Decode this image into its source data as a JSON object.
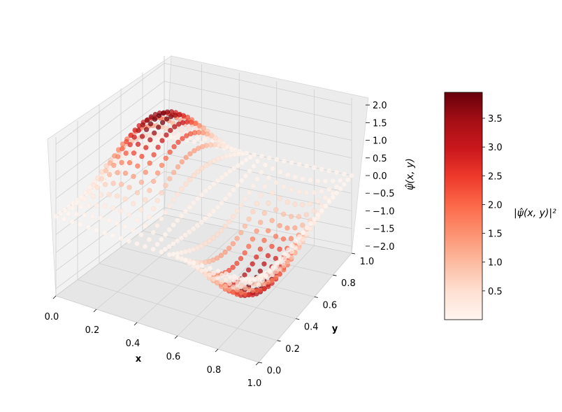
{
  "chart_data": {
    "type": "scatter",
    "plot_kind": "3d-scatter-surface",
    "function": "psi_hat(x, y) = 2 * sin(2*pi*x) * sin(pi*y)",
    "x_range": [
      0,
      1
    ],
    "y_range": [
      0,
      1
    ],
    "z_range": [
      -2.2,
      2.2
    ],
    "grid": true,
    "xlabel": "x",
    "ylabel": "y",
    "zlabel": "ψ̂(x, y)",
    "x_ticks": [
      "0.0",
      "0.2",
      "0.4",
      "0.6",
      "0.8",
      "1.0"
    ],
    "y_ticks": [
      "0.0",
      "0.2",
      "0.4",
      "0.6",
      "0.8",
      "1.0"
    ],
    "z_ticks": [
      "−2.0",
      "−1.5",
      "−1.0",
      "−0.5",
      "0.0",
      "0.5",
      "1.0",
      "1.5",
      "2.0"
    ],
    "z_tick_values": [
      -2.0,
      -1.5,
      -1.0,
      -0.5,
      0.0,
      0.5,
      1.0,
      1.5,
      2.0
    ],
    "samples_x": [
      0.0,
      0.04,
      0.08,
      0.12,
      0.16,
      0.2,
      0.24,
      0.28,
      0.32,
      0.36,
      0.4,
      0.44,
      0.48,
      0.52,
      0.56,
      0.6,
      0.64,
      0.68,
      0.72,
      0.76,
      0.8,
      0.84,
      0.88,
      0.92,
      0.96,
      1.0
    ],
    "samples_y": [
      0.0,
      0.04,
      0.08,
      0.12,
      0.16,
      0.2,
      0.24,
      0.28,
      0.32,
      0.36,
      0.4,
      0.44,
      0.48,
      0.52,
      0.56,
      0.6,
      0.64,
      0.68,
      0.72,
      0.76,
      0.8,
      0.84,
      0.88,
      0.92,
      0.96,
      1.0
    ],
    "colorbar": {
      "label": "|ψ̂(x, y)|²",
      "colormap": "Reds",
      "range": [
        0.0,
        3.95
      ],
      "ticks": [
        "0.5",
        "1.0",
        "1.5",
        "2.0",
        "2.5",
        "3.0",
        "3.5"
      ],
      "tick_values": [
        0.5,
        1.0,
        1.5,
        2.0,
        2.5,
        3.0,
        3.5
      ],
      "placement": "right"
    }
  }
}
